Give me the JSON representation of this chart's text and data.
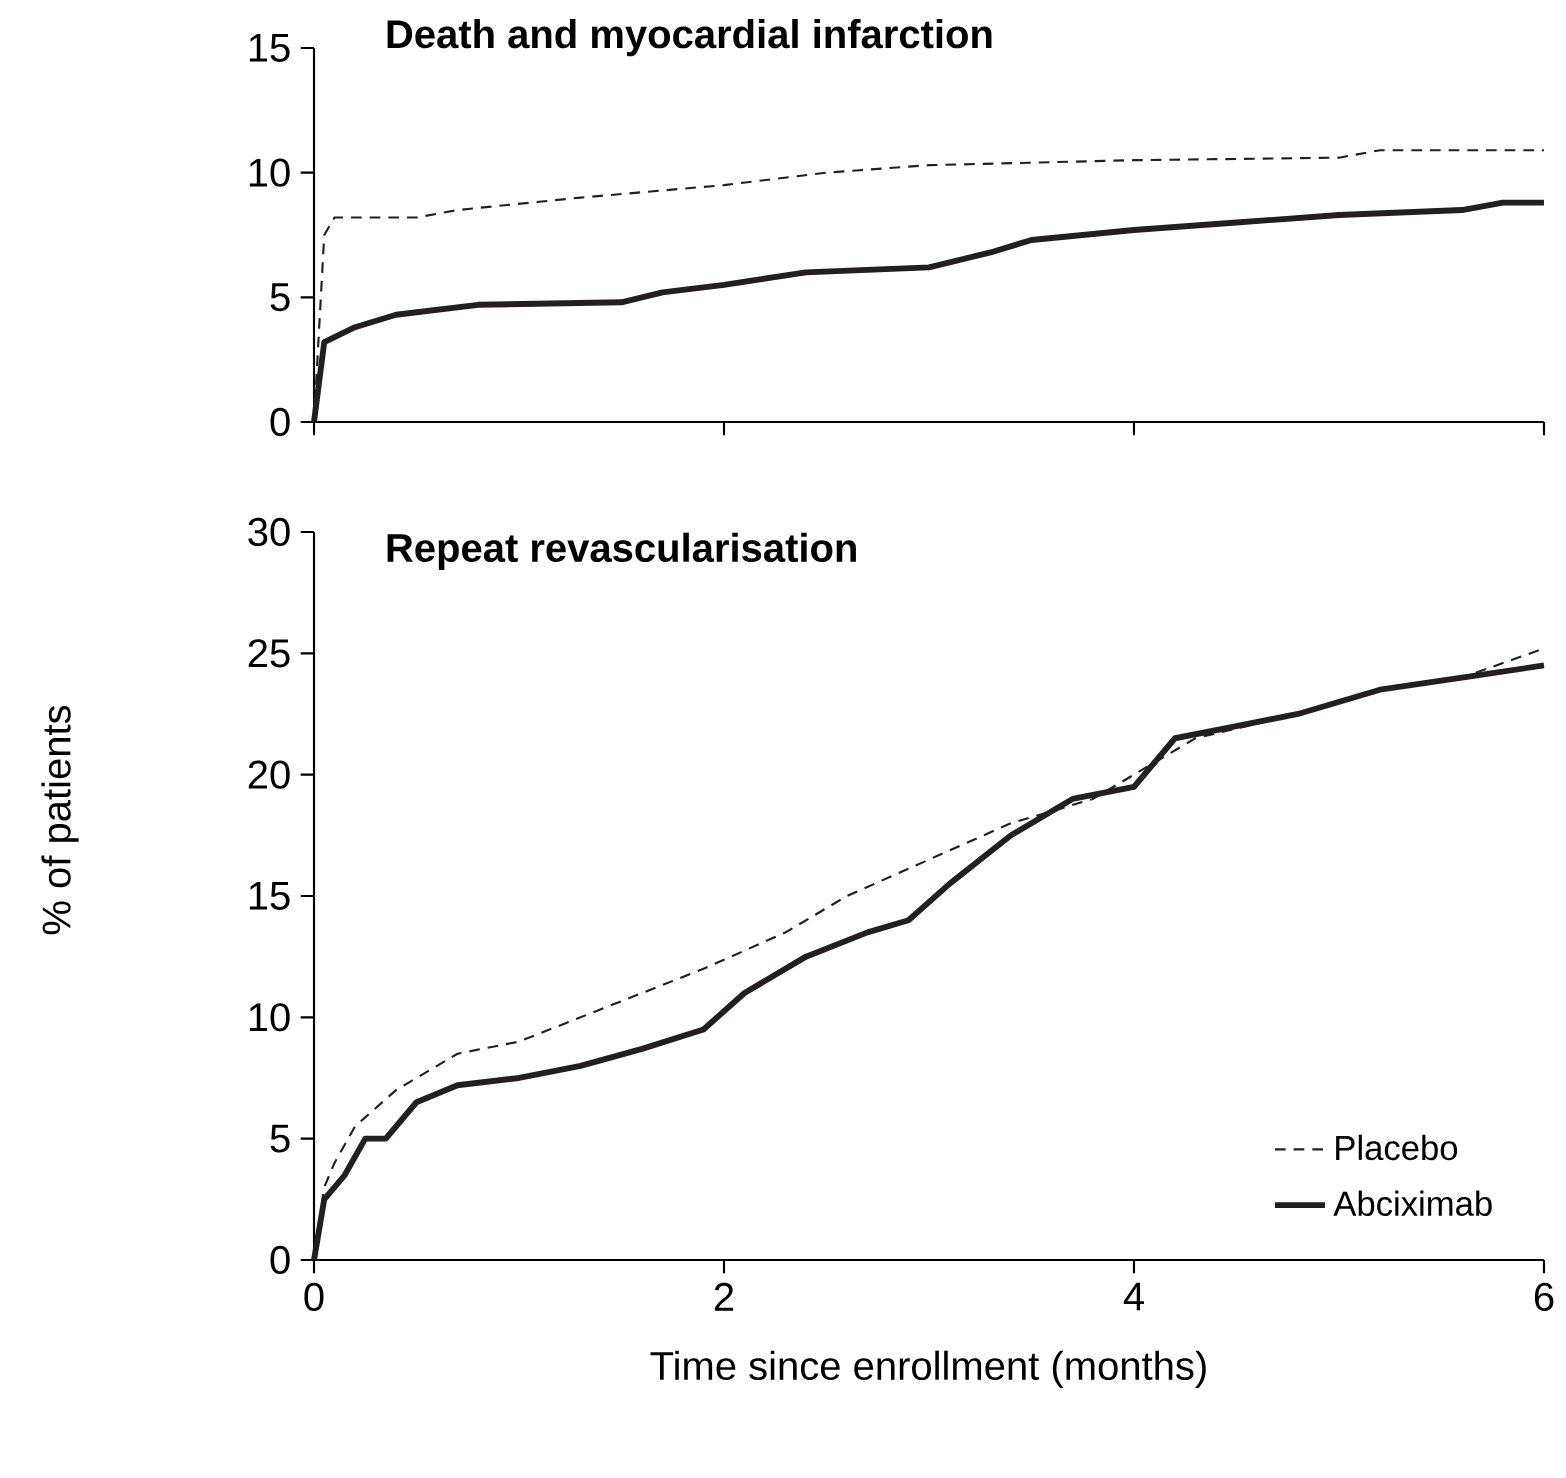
{
  "chart_data": [
    {
      "type": "line",
      "title": "Death and myocardial infarction",
      "xlim": [
        0,
        6
      ],
      "xticks": [
        0,
        2,
        4,
        6
      ],
      "ylim": [
        0,
        15
      ],
      "yticks": [
        0,
        5,
        10,
        15
      ],
      "tick_labels": "y",
      "grid": false,
      "legend": false,
      "series": [
        {
          "color": "#231f20",
          "line_style": "dashed",
          "x": [
            0,
            0.05,
            0.1,
            0.5,
            0.7,
            1.3,
            2,
            2.5,
            3,
            4,
            5,
            5.2,
            6
          ],
          "values": [
            0,
            7.5,
            8.2,
            8.2,
            8.5,
            9,
            9.5,
            10,
            10.3,
            10.5,
            10.6,
            10.9,
            10.9
          ]
        },
        {
          "color": "#231f20",
          "line_style": "solid",
          "x": [
            0,
            0.05,
            0.2,
            0.4,
            0.8,
            1.5,
            1.7,
            2,
            2.4,
            3,
            3.3,
            3.5,
            4,
            4.5,
            5,
            5.6,
            5.8,
            6
          ],
          "values": [
            0,
            3.2,
            3.8,
            4.3,
            4.7,
            4.8,
            5.2,
            5.5,
            6,
            6.2,
            6.8,
            7.3,
            7.7,
            8,
            8.3,
            8.5,
            8.8,
            8.8
          ]
        }
      ]
    },
    {
      "type": "line",
      "title": "Repeat revascularisation",
      "xlabel": "Time since enrollment (months)",
      "ylabel": "% of patients",
      "xlim": [
        0,
        6
      ],
      "xticks": [
        0,
        2,
        4,
        6
      ],
      "ylim": [
        0,
        30
      ],
      "yticks": [
        0,
        5,
        10,
        15,
        20,
        25,
        30
      ],
      "grid": false,
      "legend": "bottom right",
      "series": [
        {
          "name": "Placebo",
          "color": "#231f20",
          "line_style": "dashed",
          "x": [
            0,
            0.05,
            0.1,
            0.2,
            0.4,
            0.7,
            1,
            1.3,
            1.6,
            1.9,
            2.3,
            2.6,
            3,
            3.4,
            3.8,
            4,
            4.3,
            4.8,
            5.2,
            5.6,
            6
          ],
          "values": [
            0,
            3,
            4,
            5.5,
            7,
            8.5,
            9,
            10,
            11,
            12,
            13.5,
            15,
            16.5,
            18,
            19,
            20,
            21.5,
            22.5,
            23.5,
            24,
            25.2
          ]
        },
        {
          "name": "Abciximab",
          "color": "#231f20",
          "line_style": "solid",
          "x": [
            0,
            0.05,
            0.15,
            0.25,
            0.35,
            0.5,
            0.7,
            1,
            1.3,
            1.6,
            1.9,
            2.1,
            2.4,
            2.7,
            2.9,
            3.1,
            3.4,
            3.7,
            4,
            4.2,
            4.5,
            4.8,
            5.2,
            5.6,
            6
          ],
          "values": [
            0,
            2.5,
            3.5,
            5,
            5,
            6.5,
            7.2,
            7.5,
            8,
            8.7,
            9.5,
            11,
            12.5,
            13.5,
            14,
            15.5,
            17.5,
            19,
            19.5,
            21.5,
            22,
            22.5,
            23.5,
            24,
            24.5
          ]
        }
      ]
    }
  ]
}
